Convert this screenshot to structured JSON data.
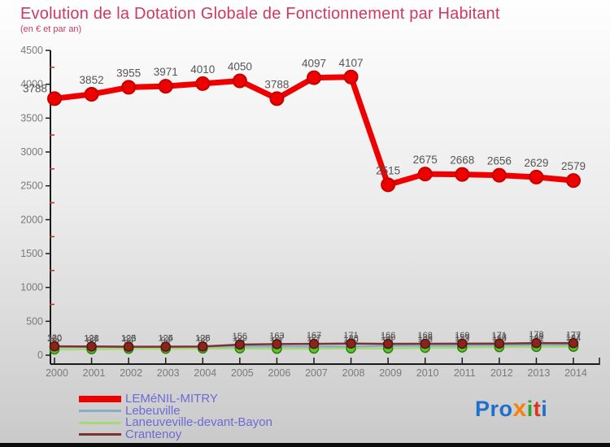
{
  "header": {
    "title": "Evolution de la Dotation Globale de Fonctionnement par Habitant",
    "subtitle": "(en € et par an)"
  },
  "chart_data": {
    "type": "line",
    "x": [
      2000,
      2001,
      2002,
      2003,
      2004,
      2005,
      2006,
      2007,
      2008,
      2009,
      2010,
      2011,
      2012,
      2013,
      2014
    ],
    "series": [
      {
        "name": "LEMéNIL-MITRY",
        "color": "#ee0000",
        "dot_stroke": "#c40000",
        "thick": true,
        "values": [
          3788,
          3852,
          3955,
          3971,
          4010,
          4050,
          3788,
          4097,
          4107,
          2515,
          2675,
          2668,
          2656,
          2629,
          2579
        ]
      },
      {
        "name": "Lebeuville",
        "color": "#85aec6",
        "dot_stroke": "#5f8fae",
        "thick": false,
        "values": [
          120,
          121,
          123,
          124,
          125,
          129,
          127,
          127,
          128,
          136,
          138,
          139,
          143,
          148,
          147
        ]
      },
      {
        "name": "Laneuveville-devant-Bayon",
        "color": "#a8d878",
        "dot_fill": "#55c822",
        "dot_stroke": "#2f7d10",
        "thick": false,
        "values": [
          84,
          88,
          94,
          94,
          98,
          99,
          94,
          97,
          100,
          99,
          108,
          113,
          118,
          121,
          124
        ]
      },
      {
        "name": "Crantenoy",
        "color": "#7d3232",
        "dot_fill": "#8a241c",
        "dot_stroke": "#531410",
        "thick": false,
        "values": [
          130,
          128,
          125,
          125,
          128,
          156,
          163,
          167,
          171,
          166,
          168,
          169,
          171,
          178,
          177
        ]
      }
    ],
    "title": "Evolution de la Dotation Globale de Fonctionnement par Habitant",
    "subtitle": "(en € et par an)",
    "ylim": [
      0,
      4500
    ],
    "ytick_step": 500,
    "yminor_step": 250,
    "grid": false,
    "legend_position": "bottom-left",
    "axis_color": "#1a1a1a",
    "minor_tick_color": "#cc2a2a",
    "tick_label_color": "#7a7a7a",
    "data_label_color": "#555555"
  },
  "logo": {
    "letters": [
      {
        "ch": "P",
        "color": "#1f6fce"
      },
      {
        "ch": "r",
        "color": "#1f6fce"
      },
      {
        "ch": "o",
        "color": "#1f6fce"
      },
      {
        "ch": "x",
        "color": "#f5820b"
      },
      {
        "ch": "i",
        "color": "#2fa12f"
      },
      {
        "ch": "t",
        "color": "#e0331f"
      },
      {
        "ch": "i",
        "color": "#1f6fce"
      }
    ]
  }
}
